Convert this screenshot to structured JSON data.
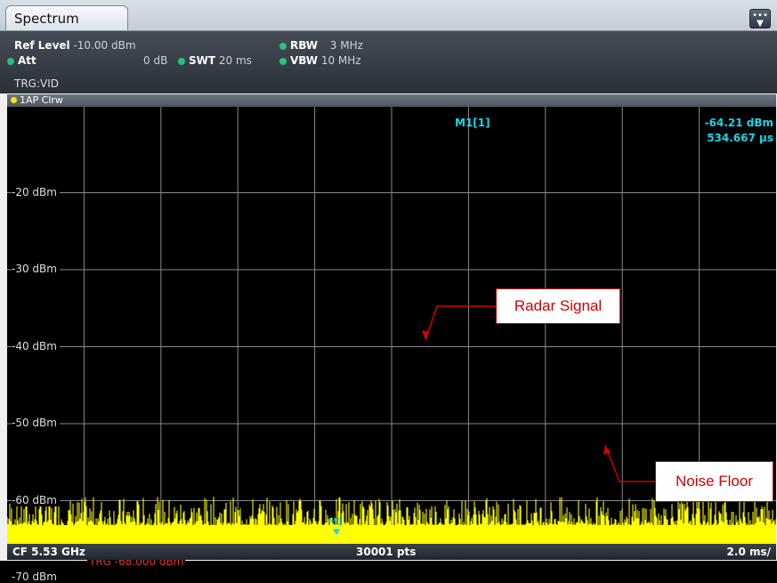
{
  "tab": {
    "label": "Spectrum"
  },
  "overflow_icon": "overflow-menu-icon",
  "settings": {
    "ref_level_label": "Ref Level",
    "ref_level_value": "-10.00 dBm",
    "att_label": "Att",
    "att_value": "0 dB",
    "swt_label": "SWT",
    "swt_value": "20 ms",
    "rbw_label": "RBW",
    "rbw_value": "3 MHz",
    "vbw_label": "VBW",
    "vbw_value": "10 MHz",
    "trigger": "TRG:VID"
  },
  "trace": {
    "label": "1AP Clrw"
  },
  "chart_data": {
    "type": "line",
    "y_unit": "dBm",
    "ylim": [
      -80,
      -10
    ],
    "y_ticks": [
      -20,
      -30,
      -40,
      -50,
      -60,
      -70
    ],
    "y_tick_labels": [
      "-20 dBm",
      "-30 dBm",
      "-40 dBm",
      "-50 dBm",
      "-60 dBm",
      "-70 dBm"
    ],
    "x_divisions": 10,
    "grid": true,
    "noise_floor_dBm": -72,
    "radar_pulses_dBm": -65,
    "trigger_level_dBm": -68,
    "trigger_label": "TRG  -68.000 dBm",
    "marker": {
      "label": "M1",
      "readout_name": "M1[1]",
      "level": "-64.21 dBm",
      "time": "534.667 µs"
    }
  },
  "annotations": {
    "radar_signal": "Radar Signal",
    "noise_floor": "Noise Floor"
  },
  "footer": {
    "center_freq": "CF 5.53 GHz",
    "points": "30001 pts",
    "time_per_div": "2.0 ms/"
  },
  "colors": {
    "trace": "#ffff00",
    "grid": "#8a8a8a",
    "trigger_line": "#e02020",
    "marker": "#19d5e6",
    "annotation": "#d00000"
  }
}
